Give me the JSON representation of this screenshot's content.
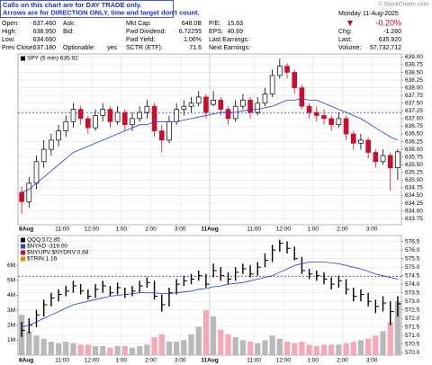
{
  "header": {
    "notice": [
      "Calls on this chart are for DAY TRADE only.",
      "Arrows are for DIRECTION ONLY, time and target don't count."
    ],
    "credit": "© StockCharts.com",
    "date": "Monday   11-Aug-2025",
    "change_pct": "-0.20%",
    "chg_label": "Chg:",
    "chg": "-1.260",
    "last_label": "Last:",
    "last": "635.920",
    "volume_label": "Volume:",
    "volume": "57,732,712",
    "quote": [
      [
        {
          "label": "Open:",
          "value": "637.460"
        },
        {
          "label": "Ask:"
        },
        {
          "label": "Mkt Cap:",
          "value": "648.0B"
        },
        {
          "label": "P/E:",
          "value": "15.63"
        }
      ],
      [
        {
          "label": "High:",
          "value": "638.950"
        },
        {
          "label": "Bid:"
        },
        {
          "label": "Fwd Dividend:",
          "value": "6.72255"
        },
        {
          "label": "EPS:",
          "value": "40.69"
        }
      ],
      [
        {
          "label": "Low:",
          "value": "634.660"
        },
        null,
        {
          "label": "Fwd Yield:",
          "value": "1.06%"
        },
        {
          "label": "Last Earnings:"
        }
      ],
      [
        {
          "label": "Prev Close:",
          "value": "637.180"
        },
        {
          "label": "Optionable:",
          "value": "yes"
        },
        {
          "label": "SCTR (ETF):",
          "value": "71.6"
        },
        {
          "label": "Next Earnings:"
        }
      ]
    ]
  },
  "chart_data": [
    {
      "type": "candlestick",
      "legend": [
        {
          "name": "SPY (5 min) 635.92",
          "color": "#000000"
        }
      ],
      "categories": [
        "8Aug",
        null,
        null,
        null,
        null,
        null,
        "11:00",
        null,
        null,
        null,
        "12:00",
        null,
        null,
        null,
        "1:00",
        null,
        null,
        null,
        "2:00",
        null,
        null,
        null,
        "3:00",
        null,
        null,
        null,
        "11Aug",
        null,
        null,
        null,
        null,
        null,
        "11:00",
        null,
        null,
        null,
        "12:00",
        null,
        null,
        null,
        "1:00",
        null,
        null,
        null,
        "2:00",
        null,
        null,
        null,
        "3:00",
        null,
        null,
        null
      ],
      "open": [
        634.6,
        634.3,
        634.9,
        635.6,
        636.0,
        636.3,
        636.6,
        636.9,
        637.3,
        637.0,
        636.7,
        637.1,
        637.3,
        636.9,
        637.2,
        636.8,
        637.0,
        637.2,
        637.4,
        636.6,
        636.3,
        636.9,
        637.3,
        637.4,
        637.5,
        637.7,
        637.46,
        637.6,
        637.3,
        637.0,
        637.4,
        637.6,
        637.2,
        637.5,
        637.8,
        638.4,
        638.7,
        638.5,
        638.0,
        637.4,
        637.2,
        637.1,
        637.0,
        636.8,
        637.0,
        636.5,
        636.2,
        636.3,
        635.9,
        635.6,
        635.8,
        635.4
      ],
      "high": [
        634.8,
        635.1,
        635.8,
        636.3,
        636.5,
        636.8,
        637.1,
        637.5,
        637.4,
        637.1,
        637.3,
        637.5,
        637.4,
        637.4,
        637.3,
        637.2,
        637.4,
        637.6,
        637.5,
        636.8,
        637.1,
        637.5,
        637.6,
        637.7,
        637.9,
        637.8,
        637.9,
        637.7,
        637.4,
        637.6,
        637.8,
        637.7,
        637.7,
        638.0,
        638.6,
        638.95,
        638.8,
        638.6,
        638.1,
        637.5,
        637.4,
        637.3,
        637.1,
        637.2,
        637.1,
        636.6,
        636.5,
        636.4,
        636.0,
        636.0,
        635.9,
        636.0
      ],
      "low": [
        633.9,
        634.1,
        634.7,
        635.4,
        635.8,
        636.1,
        636.4,
        636.7,
        636.8,
        636.5,
        636.6,
        636.9,
        636.7,
        636.8,
        636.6,
        636.6,
        636.9,
        637.0,
        636.4,
        635.9,
        636.2,
        636.8,
        637.1,
        637.2,
        637.4,
        637.0,
        637.4,
        637.1,
        636.8,
        636.9,
        637.3,
        637.0,
        637.1,
        637.4,
        637.7,
        638.3,
        638.3,
        637.8,
        637.3,
        637.0,
        636.9,
        636.8,
        636.6,
        636.7,
        636.3,
        636.0,
        636.0,
        635.7,
        635.4,
        635.5,
        634.66,
        635.0
      ],
      "close": [
        634.3,
        634.9,
        635.6,
        636.0,
        636.3,
        636.6,
        636.9,
        637.3,
        637.0,
        636.7,
        637.1,
        637.3,
        636.9,
        637.2,
        636.8,
        637.0,
        637.2,
        637.4,
        636.6,
        636.3,
        636.9,
        637.3,
        637.4,
        637.5,
        637.7,
        637.2,
        637.6,
        637.3,
        637.0,
        637.4,
        637.6,
        637.2,
        637.5,
        637.8,
        638.4,
        638.7,
        638.5,
        638.0,
        637.4,
        637.2,
        637.1,
        637.0,
        636.8,
        637.0,
        636.5,
        636.2,
        636.3,
        635.9,
        635.6,
        635.8,
        635.4,
        635.92
      ],
      "up_color": "#000000",
      "down_color": "#c8102e",
      "moving_average": {
        "color": "#2b3fd6",
        "values": [
          634.6,
          634.7,
          634.9,
          635.1,
          635.3,
          635.5,
          635.7,
          635.9,
          636.0,
          636.1,
          636.2,
          636.3,
          636.4,
          636.5,
          636.6,
          636.7,
          636.8,
          636.8,
          636.9,
          636.9,
          636.9,
          636.9,
          636.95,
          637.0,
          637.05,
          637.1,
          637.15,
          637.2,
          637.2,
          637.2,
          637.25,
          637.3,
          637.3,
          637.35,
          637.4,
          637.5,
          637.6,
          637.6,
          637.65,
          637.6,
          637.6,
          637.5,
          637.4,
          637.3,
          637.2,
          637.1,
          637.0,
          636.85,
          636.7,
          636.55,
          636.4,
          636.3
        ]
      },
      "reference_line": 637.18,
      "reference_color": "#2b3fd6",
      "ylim": [
        633.55,
        639.1
      ],
      "yticks": [
        633.75,
        {
          "value": 634,
          "label": "634.00"
        },
        634.25,
        {
          "value": 634.5,
          "label": "634.50"
        },
        634.75,
        {
          "value": 635,
          "label": "635.00"
        },
        635.25,
        {
          "value": 635.5,
          "label": "635.50"
        },
        635.75,
        {
          "value": 636,
          "label": "636.00"
        },
        636.25,
        {
          "value": 636.5,
          "label": "636.50"
        },
        636.75,
        {
          "value": 637,
          "label": "637.00"
        },
        637.25,
        {
          "value": 637.5,
          "label": "637.50"
        },
        637.75,
        {
          "value": 638,
          "label": "638.00"
        },
        638.25,
        {
          "value": 638.5,
          "label": "638.50"
        },
        638.75,
        {
          "value": 639,
          "label": "639.00"
        }
      ],
      "grid": true
    },
    {
      "type": "hlc",
      "legend": [
        {
          "name": "QQQ 572.85",
          "color": "#000000"
        },
        {
          "name": "$NYAD -319.00",
          "color": "#2b3fd6"
        },
        {
          "name": "$NYUPV:$NYDNV 0.68",
          "color": "#c8102e"
        },
        {
          "name": "$TRIN 1.16",
          "color": "#e08a00"
        }
      ],
      "categories": [
        "8Aug",
        null,
        null,
        null,
        null,
        null,
        "11:00",
        null,
        null,
        null,
        "12:00",
        null,
        null,
        null,
        "1:00",
        null,
        null,
        null,
        "2:00",
        null,
        null,
        null,
        "3:00",
        null,
        null,
        null,
        "11Aug",
        null,
        null,
        null,
        null,
        null,
        "11:00",
        null,
        null,
        null,
        "12:00",
        null,
        null,
        null,
        "1:00",
        null,
        null,
        null,
        "2:00",
        null,
        null,
        null,
        "3:00",
        null,
        null,
        null
      ],
      "high": [
        571.8,
        572.0,
        572.5,
        573.1,
        573.5,
        573.7,
        573.9,
        574.2,
        574.0,
        573.7,
        574.0,
        574.2,
        573.9,
        574.1,
        573.8,
        573.9,
        574.2,
        574.4,
        574.2,
        573.4,
        573.8,
        574.3,
        574.5,
        574.6,
        574.8,
        574.6,
        575.2,
        575.0,
        574.7,
        575.0,
        575.2,
        575.1,
        575.3,
        575.8,
        576.3,
        576.6,
        576.5,
        576.2,
        575.6,
        574.9,
        574.8,
        574.7,
        574.4,
        574.5,
        574.3,
        573.8,
        573.7,
        573.5,
        573.1,
        573.3,
        573.0,
        573.3
      ],
      "low": [
        570.9,
        571.1,
        571.5,
        572.1,
        572.7,
        573.0,
        573.3,
        573.5,
        573.4,
        573.1,
        573.2,
        573.5,
        573.3,
        573.4,
        573.2,
        573.3,
        573.5,
        573.8,
        573.1,
        572.4,
        572.7,
        573.4,
        573.9,
        574.0,
        574.2,
        573.8,
        574.4,
        574.2,
        574.0,
        574.2,
        574.6,
        574.4,
        574.5,
        575.0,
        575.3,
        575.9,
        575.8,
        575.4,
        574.6,
        574.3,
        574.2,
        574.0,
        573.7,
        573.8,
        573.4,
        573.0,
        573.0,
        572.7,
        572.3,
        572.4,
        571.6,
        572.1
      ],
      "close": [
        571.3,
        571.6,
        572.2,
        572.8,
        573.2,
        573.4,
        573.6,
        573.9,
        573.6,
        573.3,
        573.7,
        573.9,
        573.5,
        573.8,
        573.4,
        573.6,
        573.9,
        574.1,
        573.3,
        572.8,
        573.5,
        574.0,
        574.2,
        574.3,
        574.5,
        574.0,
        574.8,
        574.5,
        574.3,
        574.7,
        574.9,
        574.6,
        575.0,
        575.4,
        576.0,
        576.4,
        576.1,
        575.5,
        574.8,
        574.6,
        574.5,
        574.3,
        574.0,
        574.2,
        573.7,
        573.3,
        573.4,
        573.0,
        572.7,
        572.9,
        572.4,
        572.85
      ],
      "up_color": "#000000",
      "down_color": "#000000",
      "moving_average": {
        "color": "#2b3fd6",
        "values": [
          571.5,
          571.6,
          571.8,
          572.0,
          572.2,
          572.4,
          572.6,
          572.8,
          572.9,
          573.0,
          573.1,
          573.2,
          573.3,
          573.35,
          573.4,
          573.45,
          573.5,
          573.5,
          573.5,
          573.45,
          573.45,
          573.5,
          573.55,
          573.6,
          573.7,
          573.75,
          573.85,
          573.9,
          574.0,
          574.05,
          574.1,
          574.2,
          574.3,
          574.4,
          574.5,
          574.7,
          574.9,
          575.1,
          575.2,
          575.3,
          575.3,
          575.3,
          575.25,
          575.2,
          575.1,
          575.0,
          574.9,
          574.75,
          574.6,
          574.5,
          574.4,
          574.3
        ]
      },
      "reference_line": 574.45,
      "reference_color": "#2b3fd6",
      "volume": {
        "up_color": "#b9b9b9",
        "down_color": "#f2a9b9",
        "values": [
          2700000,
          1600000,
          1300000,
          1100000,
          900000,
          800000,
          900000,
          800000,
          700000,
          700000,
          600000,
          600000,
          500000,
          600000,
          600000,
          500000,
          600000,
          700000,
          1200000,
          1400000,
          900000,
          900000,
          1000000,
          1400000,
          1900000,
          3000000,
          2600000,
          1700000,
          1400000,
          1200000,
          1000000,
          900000,
          800000,
          1000000,
          1300000,
          1100000,
          900000,
          800000,
          900000,
          700000,
          600000,
          700000,
          700000,
          700000,
          800000,
          900000,
          1000000,
          1100000,
          1300000,
          1600000,
          2200000,
          3600000
        ],
        "ylim": [
          0,
          8000000
        ],
        "yticks": [
          {
            "value": 1000000,
            "label": "1M"
          },
          {
            "value": 2000000,
            "label": "2M"
          },
          {
            "value": 3000000,
            "label": "3M"
          },
          {
            "value": 4000000,
            "label": "4M"
          },
          {
            "value": 5000000,
            "label": "5M"
          },
          {
            "value": 6000000,
            "label": "6M"
          }
        ]
      },
      "ylim": [
        569.85,
        576.85
      ],
      "yticks": [
        {
          "value": 570,
          "label": "570.0"
        },
        570.5,
        {
          "value": 571,
          "label": "571.0"
        },
        571.5,
        {
          "value": 572,
          "label": "572.0"
        },
        572.5,
        {
          "value": 573,
          "label": "573.0"
        },
        573.5,
        {
          "value": 574,
          "label": "574.0"
        },
        574.5,
        {
          "value": 575,
          "label": "575.0"
        },
        575.5,
        {
          "value": 576,
          "label": "576.0"
        },
        576.5
      ],
      "grid": true
    }
  ]
}
